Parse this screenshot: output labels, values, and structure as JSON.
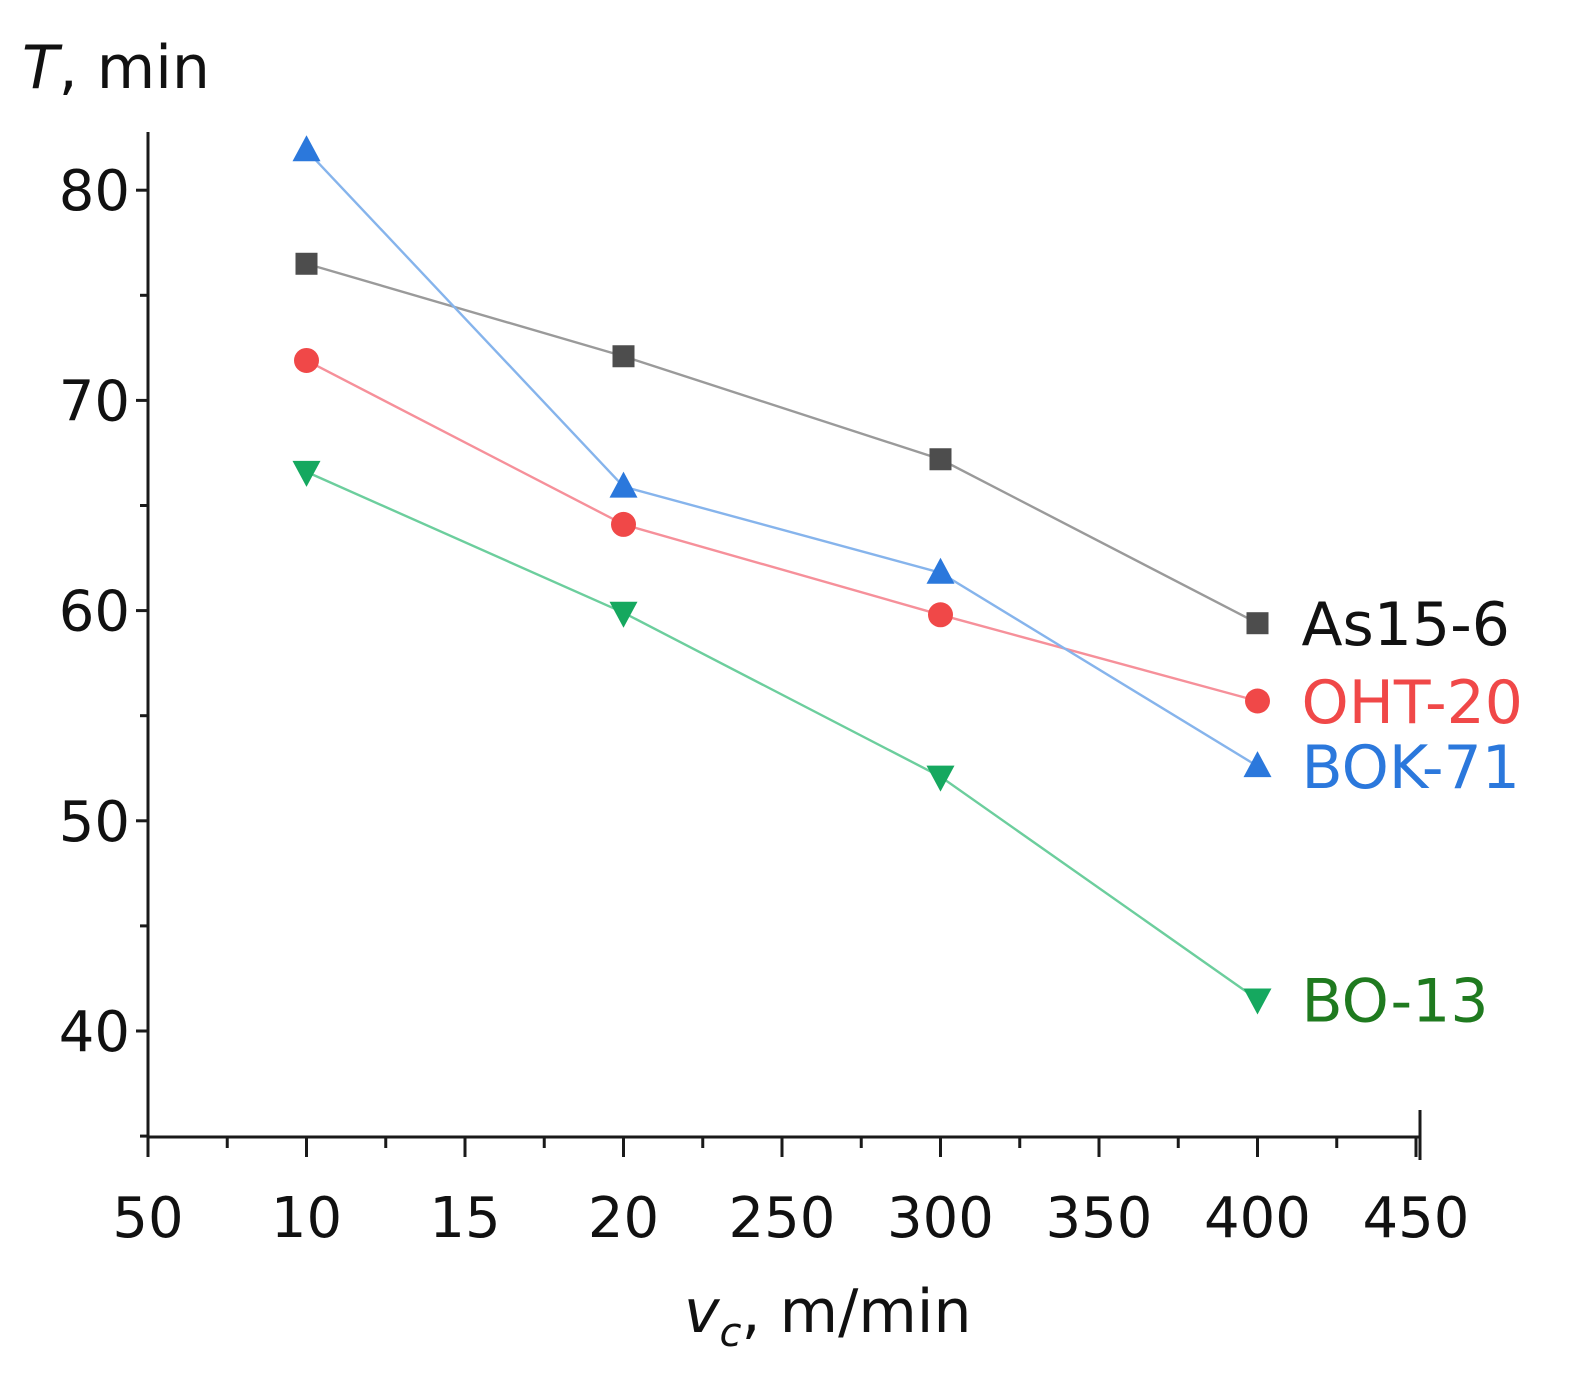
{
  "chart_data": {
    "type": "line",
    "title": "",
    "ylabel": {
      "symbol": "T",
      "unit": ", min"
    },
    "xlabel": {
      "symbol": "v",
      "subscript": "c",
      "unit": ", m/min"
    },
    "x_tick_labels": [
      "50",
      "10",
      "15",
      "20",
      "250",
      "300",
      "350",
      "400",
      "450"
    ],
    "y_ticks": [
      40,
      50,
      60,
      70,
      80
    ],
    "ylim": [
      35,
      83
    ],
    "grid": false,
    "legend": "inline-right",
    "categories": [
      "10",
      "20",
      "300",
      "400"
    ],
    "series": [
      {
        "name": "As15-6",
        "color": "#4d4d4d",
        "line_color": "#9a9a9a",
        "marker": "square",
        "values": [
          76.5,
          72.1,
          67.2,
          59.4
        ]
      },
      {
        "name": "OHT-20",
        "color": "#f04848",
        "line_color": "#f6909a",
        "marker": "circle",
        "values": [
          71.9,
          64.1,
          59.8,
          55.7
        ]
      },
      {
        "name": "BOK-71",
        "color": "#2b78dc",
        "line_color": "#86b4ec",
        "marker": "triangle-up",
        "values": [
          81.9,
          65.9,
          61.8,
          52.6
        ]
      },
      {
        "name": "BO-13",
        "color": "#15a85f",
        "line_color": "#6cce9d",
        "marker": "triangle-down",
        "values": [
          66.6,
          59.9,
          52.1,
          41.5
        ]
      }
    ],
    "label_colors": {
      "As15-6": "#111111",
      "OHT-20": "#f04848",
      "BOK-71": "#2b78dc",
      "BO-13": "#1f7a1f"
    }
  }
}
